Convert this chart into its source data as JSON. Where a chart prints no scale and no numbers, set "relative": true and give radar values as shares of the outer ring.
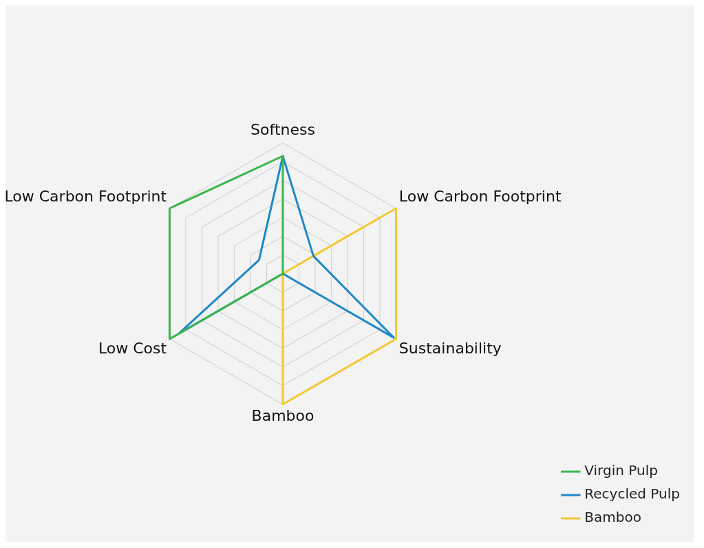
{
  "chart_data": {
    "type": "radar",
    "relative": true,
    "categories": [
      "Softness",
      "Low Carbon Footprint",
      "Sustainability",
      "Bamboo",
      "Low Cost",
      "Low Carbon Footprint"
    ],
    "grid": true,
    "legend": "bottom right",
    "marker": "none",
    "series": [
      {
        "name": "Virgin Pulp",
        "color": "#3cb54a",
        "values": [
          0.9,
          0,
          0,
          0,
          1,
          1
        ]
      },
      {
        "name": "Recycled Pulp",
        "color": "#1f88c9",
        "values": [
          0.9,
          0.27,
          0.98,
          0,
          0.92,
          0.21
        ]
      },
      {
        "name": "Bamboo",
        "color": "#f2c830",
        "values": [
          0,
          1,
          1,
          1,
          0,
          0
        ]
      }
    ]
  }
}
